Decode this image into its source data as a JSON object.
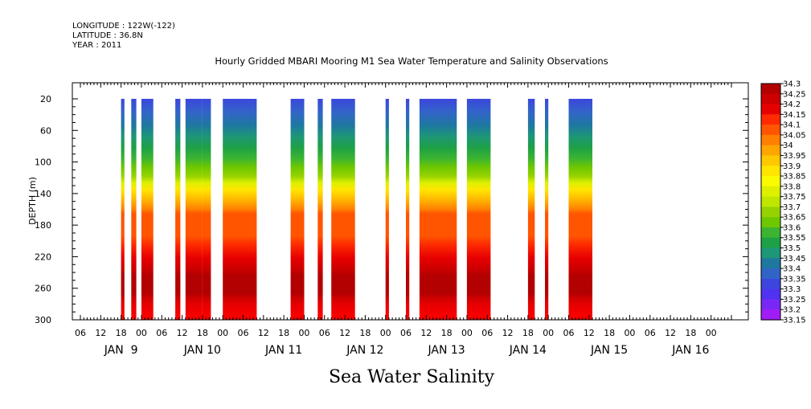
{
  "header": {
    "longitude": "LONGITUDE : 122W(-122)",
    "latitude": "LATITUDE : 36.8N",
    "year": "YEAR : 2011"
  },
  "chart_data": {
    "type": "heatmap",
    "title": "Hourly Gridded MBARI Mooring M1 Sea Water Temperature and Salinity Observations",
    "bottom_label": "Sea Water Salinity",
    "ylabel": "DEPTH (m)",
    "y_inverted": true,
    "ylim": [
      300,
      10
    ],
    "y_ticks": [
      20,
      60,
      100,
      140,
      180,
      220,
      260,
      300
    ],
    "xlim_hours": [
      0,
      192
    ],
    "x_hour_ticks": [
      "06",
      "12",
      "18",
      "00",
      "06",
      "12",
      "18",
      "00",
      "06",
      "12",
      "18",
      "00",
      "06",
      "12",
      "18",
      "00",
      "06",
      "12",
      "18",
      "00",
      "06",
      "12",
      "18",
      "00",
      "06",
      "12",
      "18",
      "00",
      "06",
      "12",
      "18",
      "00"
    ],
    "x_day_labels": [
      "JAN  9",
      "JAN 10",
      "JAN 11",
      "JAN 12",
      "JAN 13",
      "JAN 14",
      "JAN 15",
      "JAN 16"
    ],
    "colorbar": {
      "levels": [
        "34.3",
        "34.25",
        "34.2",
        "34.15",
        "34.1",
        "34.05",
        "34",
        "33.95",
        "33.9",
        "33.85",
        "33.8",
        "33.75",
        "33.7",
        "33.65",
        "33.6",
        "33.55",
        "33.5",
        "33.45",
        "33.4",
        "33.35",
        "33.3",
        "33.25",
        "33.2",
        "33.15"
      ],
      "colors": [
        "#b30000",
        "#cc0000",
        "#e60000",
        "#ff2a00",
        "#ff5500",
        "#ff7f00",
        "#ffa500",
        "#ffc800",
        "#ffe600",
        "#fafa00",
        "#dcf000",
        "#bee600",
        "#96d200",
        "#6ec800",
        "#3cb432",
        "#1ea046",
        "#1e9678",
        "#1e78a0",
        "#3264c8",
        "#3c46dc",
        "#5032f0",
        "#7828f5",
        "#a01ef5",
        "#d214eb"
      ]
    },
    "series": [
      {
        "time_range_hours": [
          12,
          13
        ]
      },
      {
        "time_range_hours": [
          15,
          16.5
        ]
      },
      {
        "time_range_hours": [
          18,
          21.5
        ]
      },
      {
        "time_range_hours": [
          28,
          29.5
        ]
      },
      {
        "time_range_hours": [
          31,
          32
        ]
      },
      {
        "time_range_hours": [
          32,
          36
        ]
      },
      {
        "time_range_hours": [
          36,
          38.5
        ]
      },
      {
        "time_range_hours": [
          42,
          52
        ]
      },
      {
        "time_range_hours": [
          62,
          66
        ]
      },
      {
        "time_range_hours": [
          70,
          71.5
        ]
      },
      {
        "time_range_hours": [
          74,
          81
        ]
      },
      {
        "time_range_hours": [
          90,
          91
        ]
      },
      {
        "time_range_hours": [
          96,
          97
        ]
      },
      {
        "time_range_hours": [
          100,
          111
        ]
      },
      {
        "time_range_hours": [
          114,
          121
        ]
      },
      {
        "time_range_hours": [
          132,
          134
        ]
      },
      {
        "time_range_hours": [
          137,
          138
        ]
      },
      {
        "time_range_hours": [
          144,
          151
        ]
      }
    ]
  }
}
